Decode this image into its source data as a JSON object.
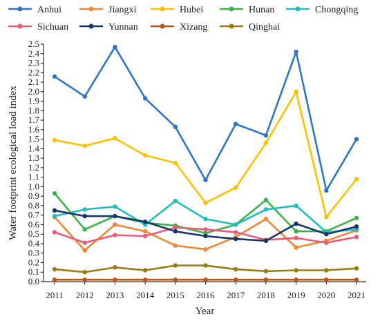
{
  "chart_data": {
    "type": "line",
    "title": "",
    "xlabel": "Year",
    "ylabel": "Water footprint ecological load index",
    "ylim": [
      0,
      2.5
    ],
    "y_tick_step": 0.1,
    "grid": false,
    "legend_position": "top",
    "categories": [
      "2011",
      "2012",
      "2013",
      "2014",
      "2015",
      "2016",
      "2017",
      "2018",
      "2019",
      "2020",
      "2021"
    ],
    "series": [
      {
        "name": "Anhui",
        "color": "#2E75C9",
        "values": [
          2.16,
          1.95,
          2.47,
          1.93,
          1.63,
          1.07,
          1.66,
          1.54,
          2.42,
          0.96,
          1.5
        ]
      },
      {
        "name": "Jiangxi",
        "color": "#F0862F",
        "values": [
          0.68,
          0.33,
          0.6,
          0.53,
          0.38,
          0.34,
          0.47,
          0.66,
          0.36,
          0.43,
          0.54
        ]
      },
      {
        "name": "Hubei",
        "color": "#FFC000",
        "values": [
          1.49,
          1.43,
          1.51,
          1.33,
          1.25,
          0.83,
          0.99,
          1.46,
          2.0,
          0.68,
          1.08
        ]
      },
      {
        "name": "Hunan",
        "color": "#3CB34A",
        "values": [
          0.93,
          0.55,
          0.69,
          0.62,
          0.59,
          0.51,
          0.6,
          0.86,
          0.53,
          0.53,
          0.67
        ]
      },
      {
        "name": "Chongqing",
        "color": "#1DBFBF",
        "values": [
          0.69,
          0.76,
          0.79,
          0.6,
          0.85,
          0.66,
          0.6,
          0.76,
          0.8,
          0.52,
          0.55
        ]
      },
      {
        "name": "Sichuan",
        "color": "#EC5B78",
        "values": [
          0.52,
          0.41,
          0.49,
          0.48,
          0.57,
          0.55,
          0.52,
          0.44,
          0.46,
          0.41,
          0.47
        ]
      },
      {
        "name": "Yunnan",
        "color": "#16356B",
        "values": [
          0.75,
          0.69,
          0.69,
          0.63,
          0.53,
          0.48,
          0.45,
          0.43,
          0.61,
          0.5,
          0.58
        ]
      },
      {
        "name": "Xizang",
        "color": "#B5561A",
        "values": [
          0.02,
          0.02,
          0.02,
          0.02,
          0.02,
          0.02,
          0.02,
          0.02,
          0.02,
          0.02,
          0.02
        ]
      },
      {
        "name": "Qinghai",
        "color": "#9B7B0D",
        "values": [
          0.13,
          0.1,
          0.15,
          0.12,
          0.17,
          0.17,
          0.13,
          0.11,
          0.12,
          0.12,
          0.14
        ]
      }
    ]
  }
}
